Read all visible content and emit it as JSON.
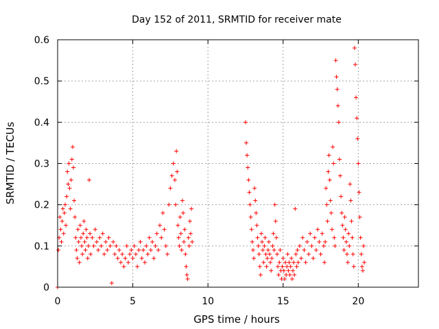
{
  "chart_data": {
    "type": "scatter",
    "title": "Day 152 of 2011, SRMTID for receiver mate",
    "xlabel": "GPS time / hours",
    "ylabel": "SRMTID / TECUs",
    "xlim": [
      0,
      24
    ],
    "ylim": [
      0,
      0.6
    ],
    "xticks": [
      0,
      5,
      10,
      15,
      20
    ],
    "xtick_labels": [
      "0",
      "5",
      "10",
      "15",
      "20"
    ],
    "yticks": [
      0,
      0.1,
      0.2,
      0.3,
      0.4,
      0.5,
      0.6
    ],
    "ytick_labels": [
      "0",
      "0.1",
      "0.2",
      "0.3",
      "0.4",
      "0.5",
      "0.6"
    ],
    "grid": true,
    "marker": "+",
    "color": "#ff0000",
    "series": [
      {
        "name": "SRMTID",
        "points": [
          [
            0.0,
            0.0
          ],
          [
            0.05,
            0.09
          ],
          [
            0.1,
            0.12
          ],
          [
            0.15,
            0.17
          ],
          [
            0.2,
            0.14
          ],
          [
            0.25,
            0.11
          ],
          [
            0.3,
            0.16
          ],
          [
            0.35,
            0.19
          ],
          [
            0.4,
            0.13
          ],
          [
            0.45,
            0.18
          ],
          [
            0.5,
            0.2
          ],
          [
            0.55,
            0.15
          ],
          [
            0.6,
            0.22
          ],
          [
            0.65,
            0.28
          ],
          [
            0.7,
            0.25
          ],
          [
            0.75,
            0.3
          ],
          [
            0.8,
            0.24
          ],
          [
            0.85,
            0.19
          ],
          [
            0.9,
            0.26
          ],
          [
            0.95,
            0.31
          ],
          [
            1.0,
            0.34
          ],
          [
            1.05,
            0.29
          ],
          [
            1.1,
            0.21
          ],
          [
            1.15,
            0.17
          ],
          [
            1.2,
            0.12
          ],
          [
            1.25,
            0.09
          ],
          [
            1.3,
            0.07
          ],
          [
            1.35,
            0.14
          ],
          [
            1.4,
            0.11
          ],
          [
            1.45,
            0.06
          ],
          [
            1.5,
            0.15
          ],
          [
            1.55,
            0.12
          ],
          [
            1.6,
            0.1
          ],
          [
            1.65,
            0.08
          ],
          [
            1.7,
            0.13
          ],
          [
            1.75,
            0.16
          ],
          [
            1.8,
            0.11
          ],
          [
            1.85,
            0.09
          ],
          [
            1.9,
            0.14
          ],
          [
            1.95,
            0.12
          ],
          [
            2.0,
            0.07
          ],
          [
            2.05,
            0.1
          ],
          [
            2.1,
            0.26
          ],
          [
            2.15,
            0.13
          ],
          [
            2.2,
            0.08
          ],
          [
            2.3,
            0.12
          ],
          [
            2.4,
            0.1
          ],
          [
            2.5,
            0.14
          ],
          [
            2.6,
            0.11
          ],
          [
            2.7,
            0.09
          ],
          [
            2.8,
            0.12
          ],
          [
            2.9,
            0.1
          ],
          [
            3.0,
            0.13
          ],
          [
            3.1,
            0.08
          ],
          [
            3.2,
            0.11
          ],
          [
            3.3,
            0.09
          ],
          [
            3.4,
            0.12
          ],
          [
            3.5,
            0.1
          ],
          [
            3.6,
            0.01
          ],
          [
            3.7,
            0.11
          ],
          [
            3.8,
            0.08
          ],
          [
            3.9,
            0.1
          ],
          [
            4.0,
            0.07
          ],
          [
            4.1,
            0.09
          ],
          [
            4.2,
            0.06
          ],
          [
            4.3,
            0.08
          ],
          [
            4.4,
            0.05
          ],
          [
            4.5,
            0.07
          ],
          [
            4.6,
            0.1
          ],
          [
            4.7,
            0.06
          ],
          [
            4.8,
            0.08
          ],
          [
            4.9,
            0.09
          ],
          [
            5.0,
            0.07
          ],
          [
            5.1,
            0.1
          ],
          [
            5.2,
            0.08
          ],
          [
            5.3,
            0.05
          ],
          [
            5.4,
            0.09
          ],
          [
            5.5,
            0.11
          ],
          [
            5.6,
            0.07
          ],
          [
            5.7,
            0.09
          ],
          [
            5.8,
            0.06
          ],
          [
            5.9,
            0.1
          ],
          [
            6.0,
            0.08
          ],
          [
            6.1,
            0.12
          ],
          [
            6.2,
            0.09
          ],
          [
            6.3,
            0.11
          ],
          [
            6.4,
            0.07
          ],
          [
            6.5,
            0.1
          ],
          [
            6.6,
            0.13
          ],
          [
            6.7,
            0.09
          ],
          [
            6.8,
            0.15
          ],
          [
            6.9,
            0.12
          ],
          [
            7.0,
            0.18
          ],
          [
            7.1,
            0.14
          ],
          [
            7.2,
            0.1
          ],
          [
            7.3,
            0.08
          ],
          [
            7.4,
            0.2
          ],
          [
            7.5,
            0.24
          ],
          [
            7.6,
            0.27
          ],
          [
            7.7,
            0.3
          ],
          [
            7.8,
            0.26
          ],
          [
            7.85,
            0.2
          ],
          [
            7.9,
            0.33
          ],
          [
            7.95,
            0.28
          ],
          [
            8.0,
            0.15
          ],
          [
            8.05,
            0.12
          ],
          [
            8.1,
            0.1
          ],
          [
            8.15,
            0.17
          ],
          [
            8.2,
            0.13
          ],
          [
            8.25,
            0.09
          ],
          [
            8.3,
            0.21
          ],
          [
            8.35,
            0.18
          ],
          [
            8.4,
            0.11
          ],
          [
            8.45,
            0.14
          ],
          [
            8.5,
            0.08
          ],
          [
            8.55,
            0.05
          ],
          [
            8.6,
            0.03
          ],
          [
            8.65,
            0.02
          ],
          [
            8.7,
            0.12
          ],
          [
            8.75,
            0.1
          ],
          [
            8.8,
            0.16
          ],
          [
            8.85,
            0.13
          ],
          [
            8.9,
            0.19
          ],
          [
            8.95,
            0.11
          ],
          [
            12.5,
            0.4
          ],
          [
            12.55,
            0.35
          ],
          [
            12.6,
            0.32
          ],
          [
            12.65,
            0.29
          ],
          [
            12.7,
            0.26
          ],
          [
            12.75,
            0.23
          ],
          [
            12.8,
            0.2
          ],
          [
            12.85,
            0.17
          ],
          [
            12.9,
            0.14
          ],
          [
            12.95,
            0.11
          ],
          [
            13.0,
            0.09
          ],
          [
            13.05,
            0.07
          ],
          [
            13.1,
            0.24
          ],
          [
            13.15,
            0.21
          ],
          [
            13.2,
            0.18
          ],
          [
            13.25,
            0.15
          ],
          [
            13.3,
            0.12
          ],
          [
            13.35,
            0.1
          ],
          [
            13.4,
            0.08
          ],
          [
            13.45,
            0.05
          ],
          [
            13.5,
            0.03
          ],
          [
            13.55,
            0.13
          ],
          [
            13.6,
            0.11
          ],
          [
            13.65,
            0.09
          ],
          [
            13.7,
            0.06
          ],
          [
            13.75,
            0.1
          ],
          [
            13.8,
            0.12
          ],
          [
            13.85,
            0.08
          ],
          [
            13.9,
            0.05
          ],
          [
            13.95,
            0.07
          ],
          [
            14.0,
            0.09
          ],
          [
            14.05,
            0.11
          ],
          [
            14.1,
            0.08
          ],
          [
            14.15,
            0.06
          ],
          [
            14.2,
            0.04
          ],
          [
            14.25,
            0.07
          ],
          [
            14.3,
            0.1
          ],
          [
            14.35,
            0.13
          ],
          [
            14.4,
            0.09
          ],
          [
            14.45,
            0.2
          ],
          [
            14.5,
            0.16
          ],
          [
            14.55,
            0.12
          ],
          [
            14.6,
            0.08
          ],
          [
            14.65,
            0.05
          ],
          [
            14.7,
            0.03
          ],
          [
            14.75,
            0.06
          ],
          [
            14.8,
            0.09
          ],
          [
            14.85,
            0.04
          ],
          [
            14.9,
            0.02
          ],
          [
            14.95,
            0.05
          ],
          [
            15.0,
            0.07
          ],
          [
            15.05,
            0.04
          ],
          [
            15.1,
            0.02
          ],
          [
            15.15,
            0.06
          ],
          [
            15.2,
            0.03
          ],
          [
            15.25,
            0.05
          ],
          [
            15.3,
            0.08
          ],
          [
            15.35,
            0.04
          ],
          [
            15.4,
            0.06
          ],
          [
            15.45,
            0.03
          ],
          [
            15.5,
            0.05
          ],
          [
            15.55,
            0.07
          ],
          [
            15.6,
            0.02
          ],
          [
            15.65,
            0.04
          ],
          [
            15.7,
            0.06
          ],
          [
            15.75,
            0.03
          ],
          [
            15.8,
            0.19
          ],
          [
            15.85,
            0.08
          ],
          [
            15.9,
            0.05
          ],
          [
            15.95,
            0.09
          ],
          [
            16.0,
            0.06
          ],
          [
            16.1,
            0.1
          ],
          [
            16.2,
            0.07
          ],
          [
            16.3,
            0.12
          ],
          [
            16.4,
            0.09
          ],
          [
            16.5,
            0.06
          ],
          [
            16.6,
            0.11
          ],
          [
            16.7,
            0.08
          ],
          [
            16.8,
            0.13
          ],
          [
            16.9,
            0.1
          ],
          [
            17.0,
            0.07
          ],
          [
            17.1,
            0.12
          ],
          [
            17.2,
            0.09
          ],
          [
            17.3,
            0.14
          ],
          [
            17.4,
            0.11
          ],
          [
            17.5,
            0.08
          ],
          [
            17.6,
            0.13
          ],
          [
            17.7,
            0.1
          ],
          [
            17.75,
            0.06
          ],
          [
            17.8,
            0.11
          ],
          [
            17.85,
            0.24
          ],
          [
            17.9,
            0.2
          ],
          [
            17.95,
            0.16
          ],
          [
            18.0,
            0.28
          ],
          [
            18.05,
            0.32
          ],
          [
            18.1,
            0.26
          ],
          [
            18.15,
            0.21
          ],
          [
            18.2,
            0.18
          ],
          [
            18.25,
            0.14
          ],
          [
            18.3,
            0.34
          ],
          [
            18.35,
            0.3
          ],
          [
            18.4,
            0.12
          ],
          [
            18.45,
            0.1
          ],
          [
            18.5,
            0.55
          ],
          [
            18.55,
            0.51
          ],
          [
            18.6,
            0.48
          ],
          [
            18.65,
            0.44
          ],
          [
            18.7,
            0.4
          ],
          [
            18.75,
            0.31
          ],
          [
            18.8,
            0.27
          ],
          [
            18.85,
            0.22
          ],
          [
            18.9,
            0.18
          ],
          [
            18.95,
            0.15
          ],
          [
            19.0,
            0.12
          ],
          [
            19.05,
            0.09
          ],
          [
            19.1,
            0.17
          ],
          [
            19.15,
            0.14
          ],
          [
            19.2,
            0.11
          ],
          [
            19.25,
            0.08
          ],
          [
            19.3,
            0.06
          ],
          [
            19.35,
            0.13
          ],
          [
            19.4,
            0.1
          ],
          [
            19.45,
            0.25
          ],
          [
            19.5,
            0.21
          ],
          [
            19.55,
            0.16
          ],
          [
            19.6,
            0.12
          ],
          [
            19.65,
            0.08
          ],
          [
            19.7,
            0.05
          ],
          [
            19.75,
            0.58
          ],
          [
            19.8,
            0.54
          ],
          [
            19.85,
            0.46
          ],
          [
            19.9,
            0.41
          ],
          [
            19.95,
            0.36
          ],
          [
            20.0,
            0.3
          ],
          [
            20.05,
            0.23
          ],
          [
            20.1,
            0.17
          ],
          [
            20.15,
            0.12
          ],
          [
            20.2,
            0.08
          ],
          [
            20.25,
            0.05
          ],
          [
            20.3,
            0.04
          ],
          [
            20.35,
            0.1
          ],
          [
            20.4,
            0.06
          ]
        ]
      }
    ]
  }
}
